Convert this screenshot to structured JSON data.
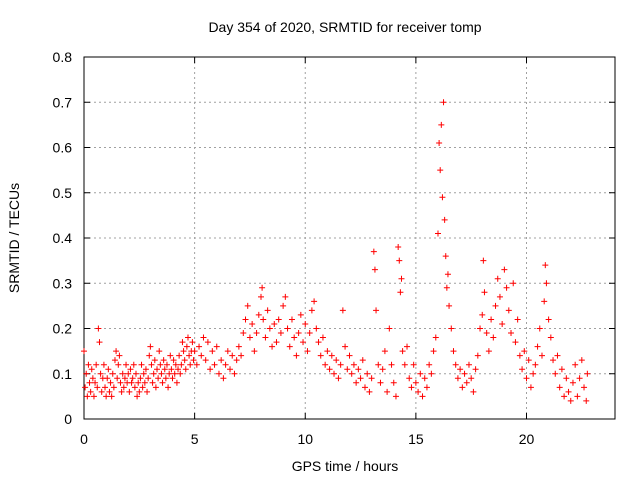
{
  "chart_data": {
    "type": "scatter",
    "title": "Day 354 of 2020, SRMTID for receiver tomp",
    "xlabel": "GPS time / hours",
    "ylabel": "SRMTID / TECUs",
    "xlim": [
      0,
      24
    ],
    "ylim": [
      0,
      0.8
    ],
    "x_ticks": [
      0,
      5,
      10,
      15,
      20
    ],
    "x_tick_labels": [
      "0",
      "5",
      "10",
      "15",
      "20"
    ],
    "y_ticks": [
      0,
      0.1,
      0.2,
      0.3,
      0.4,
      0.5,
      0.6,
      0.7,
      0.8
    ],
    "y_tick_labels": [
      "0",
      "0.1",
      "0.2",
      "0.3",
      "0.4",
      "0.5",
      "0.6",
      "0.7",
      "0.8"
    ],
    "grid": true,
    "marker": "+",
    "color": "#ff0000",
    "series": [
      {
        "name": "SRMTID",
        "points": [
          [
            0.0,
            0.15
          ],
          [
            0.05,
            0.07
          ],
          [
            0.1,
            0.1
          ],
          [
            0.15,
            0.05
          ],
          [
            0.2,
            0.12
          ],
          [
            0.25,
            0.08
          ],
          [
            0.3,
            0.06
          ],
          [
            0.35,
            0.11
          ],
          [
            0.4,
            0.09
          ],
          [
            0.45,
            0.05
          ],
          [
            0.5,
            0.08
          ],
          [
            0.55,
            0.12
          ],
          [
            0.6,
            0.07
          ],
          [
            0.65,
            0.2
          ],
          [
            0.7,
            0.17
          ],
          [
            0.75,
            0.1
          ],
          [
            0.8,
            0.06
          ],
          [
            0.85,
            0.09
          ],
          [
            0.9,
            0.12
          ],
          [
            0.95,
            0.07
          ],
          [
            1.0,
            0.05
          ],
          [
            1.05,
            0.09
          ],
          [
            1.1,
            0.11
          ],
          [
            1.15,
            0.06
          ],
          [
            1.2,
            0.08
          ],
          [
            1.25,
            0.05
          ],
          [
            1.3,
            0.1
          ],
          [
            1.35,
            0.07
          ],
          [
            1.4,
            0.13
          ],
          [
            1.45,
            0.15
          ],
          [
            1.5,
            0.09
          ],
          [
            1.55,
            0.12
          ],
          [
            1.6,
            0.14
          ],
          [
            1.65,
            0.08
          ],
          [
            1.7,
            0.06
          ],
          [
            1.75,
            0.1
          ],
          [
            1.8,
            0.07
          ],
          [
            1.85,
            0.09
          ],
          [
            1.9,
            0.12
          ],
          [
            1.95,
            0.08
          ],
          [
            2.0,
            0.1
          ],
          [
            2.05,
            0.06
          ],
          [
            2.1,
            0.11
          ],
          [
            2.15,
            0.08
          ],
          [
            2.2,
            0.09
          ],
          [
            2.25,
            0.12
          ],
          [
            2.3,
            0.07
          ],
          [
            2.35,
            0.1
          ],
          [
            2.4,
            0.05
          ],
          [
            2.45,
            0.08
          ],
          [
            2.5,
            0.06
          ],
          [
            2.55,
            0.09
          ],
          [
            2.6,
            0.12
          ],
          [
            2.65,
            0.07
          ],
          [
            2.7,
            0.1
          ],
          [
            2.75,
            0.08
          ],
          [
            2.8,
            0.11
          ],
          [
            2.85,
            0.06
          ],
          [
            2.9,
            0.09
          ],
          [
            2.95,
            0.14
          ],
          [
            3.0,
            0.16
          ],
          [
            3.05,
            0.12
          ],
          [
            3.1,
            0.08
          ],
          [
            3.15,
            0.1
          ],
          [
            3.2,
            0.13
          ],
          [
            3.25,
            0.07
          ],
          [
            3.3,
            0.11
          ],
          [
            3.35,
            0.09
          ],
          [
            3.4,
            0.15
          ],
          [
            3.45,
            0.12
          ],
          [
            3.5,
            0.1
          ],
          [
            3.55,
            0.08
          ],
          [
            3.6,
            0.13
          ],
          [
            3.65,
            0.11
          ],
          [
            3.7,
            0.09
          ],
          [
            3.75,
            0.12
          ],
          [
            3.8,
            0.07
          ],
          [
            3.85,
            0.1
          ],
          [
            3.9,
            0.14
          ],
          [
            3.95,
            0.11
          ],
          [
            4.0,
            0.09
          ],
          [
            4.05,
            0.13
          ],
          [
            4.1,
            0.1
          ],
          [
            4.15,
            0.12
          ],
          [
            4.2,
            0.08
          ],
          [
            4.25,
            0.11
          ],
          [
            4.3,
            0.14
          ],
          [
            4.35,
            0.1
          ],
          [
            4.4,
            0.12
          ],
          [
            4.45,
            0.17
          ],
          [
            4.5,
            0.15
          ],
          [
            4.55,
            0.13
          ],
          [
            4.6,
            0.11
          ],
          [
            4.65,
            0.16
          ],
          [
            4.7,
            0.18
          ],
          [
            4.75,
            0.14
          ],
          [
            4.8,
            0.12
          ],
          [
            4.85,
            0.15
          ],
          [
            4.9,
            0.17
          ],
          [
            4.95,
            0.13
          ],
          [
            5.0,
            0.15
          ],
          [
            5.1,
            0.12
          ],
          [
            5.2,
            0.16
          ],
          [
            5.3,
            0.14
          ],
          [
            5.4,
            0.18
          ],
          [
            5.5,
            0.13
          ],
          [
            5.6,
            0.17
          ],
          [
            5.7,
            0.11
          ],
          [
            5.8,
            0.15
          ],
          [
            5.9,
            0.12
          ],
          [
            6.0,
            0.16
          ],
          [
            6.1,
            0.1
          ],
          [
            6.2,
            0.13
          ],
          [
            6.3,
            0.09
          ],
          [
            6.4,
            0.12
          ],
          [
            6.5,
            0.15
          ],
          [
            6.6,
            0.11
          ],
          [
            6.7,
            0.14
          ],
          [
            6.8,
            0.1
          ],
          [
            6.9,
            0.13
          ],
          [
            7.0,
            0.16
          ],
          [
            7.1,
            0.14
          ],
          [
            7.2,
            0.19
          ],
          [
            7.3,
            0.22
          ],
          [
            7.4,
            0.25
          ],
          [
            7.5,
            0.18
          ],
          [
            7.6,
            0.21
          ],
          [
            7.7,
            0.15
          ],
          [
            7.8,
            0.19
          ],
          [
            7.9,
            0.23
          ],
          [
            8.0,
            0.27
          ],
          [
            8.05,
            0.29
          ],
          [
            8.1,
            0.22
          ],
          [
            8.2,
            0.18
          ],
          [
            8.3,
            0.24
          ],
          [
            8.4,
            0.2
          ],
          [
            8.5,
            0.16
          ],
          [
            8.6,
            0.21
          ],
          [
            8.7,
            0.17
          ],
          [
            8.8,
            0.22
          ],
          [
            8.9,
            0.19
          ],
          [
            9.0,
            0.25
          ],
          [
            9.1,
            0.27
          ],
          [
            9.2,
            0.2
          ],
          [
            9.3,
            0.16
          ],
          [
            9.4,
            0.22
          ],
          [
            9.5,
            0.18
          ],
          [
            9.6,
            0.14
          ],
          [
            9.7,
            0.19
          ],
          [
            9.8,
            0.23
          ],
          [
            9.9,
            0.17
          ],
          [
            10.0,
            0.21
          ],
          [
            10.1,
            0.15
          ],
          [
            10.2,
            0.19
          ],
          [
            10.3,
            0.24
          ],
          [
            10.4,
            0.26
          ],
          [
            10.5,
            0.2
          ],
          [
            10.6,
            0.17
          ],
          [
            10.7,
            0.14
          ],
          [
            10.8,
            0.18
          ],
          [
            10.9,
            0.12
          ],
          [
            11.0,
            0.15
          ],
          [
            11.1,
            0.11
          ],
          [
            11.2,
            0.14
          ],
          [
            11.3,
            0.1
          ],
          [
            11.4,
            0.13
          ],
          [
            11.5,
            0.09
          ],
          [
            11.6,
            0.12
          ],
          [
            11.7,
            0.24
          ],
          [
            11.8,
            0.16
          ],
          [
            11.9,
            0.11
          ],
          [
            12.0,
            0.14
          ],
          [
            12.1,
            0.1
          ],
          [
            12.2,
            0.12
          ],
          [
            12.3,
            0.08
          ],
          [
            12.4,
            0.11
          ],
          [
            12.5,
            0.09
          ],
          [
            12.6,
            0.13
          ],
          [
            12.7,
            0.07
          ],
          [
            12.8,
            0.1
          ],
          [
            12.9,
            0.06
          ],
          [
            13.0,
            0.09
          ],
          [
            13.1,
            0.37
          ],
          [
            13.15,
            0.33
          ],
          [
            13.2,
            0.24
          ],
          [
            13.3,
            0.12
          ],
          [
            13.4,
            0.08
          ],
          [
            13.5,
            0.11
          ],
          [
            13.6,
            0.15
          ],
          [
            13.7,
            0.06
          ],
          [
            13.8,
            0.2
          ],
          [
            13.9,
            0.12
          ],
          [
            14.0,
            0.08
          ],
          [
            14.1,
            0.05
          ],
          [
            14.2,
            0.38
          ],
          [
            14.25,
            0.35
          ],
          [
            14.3,
            0.28
          ],
          [
            14.35,
            0.31
          ],
          [
            14.4,
            0.15
          ],
          [
            14.5,
            0.12
          ],
          [
            14.6,
            0.16
          ],
          [
            14.7,
            0.09
          ],
          [
            14.8,
            0.07
          ],
          [
            14.9,
            0.12
          ],
          [
            15.0,
            0.08
          ],
          [
            15.1,
            0.06
          ],
          [
            15.2,
            0.1
          ],
          [
            15.3,
            0.05
          ],
          [
            15.4,
            0.09
          ],
          [
            15.5,
            0.07
          ],
          [
            15.6,
            0.12
          ],
          [
            15.7,
            0.1
          ],
          [
            15.8,
            0.15
          ],
          [
            15.9,
            0.18
          ],
          [
            16.0,
            0.41
          ],
          [
            16.05,
            0.61
          ],
          [
            16.1,
            0.55
          ],
          [
            16.15,
            0.65
          ],
          [
            16.2,
            0.49
          ],
          [
            16.25,
            0.7
          ],
          [
            16.3,
            0.44
          ],
          [
            16.35,
            0.36
          ],
          [
            16.4,
            0.29
          ],
          [
            16.45,
            0.32
          ],
          [
            16.5,
            0.25
          ],
          [
            16.6,
            0.2
          ],
          [
            16.7,
            0.15
          ],
          [
            16.8,
            0.12
          ],
          [
            16.9,
            0.09
          ],
          [
            17.0,
            0.11
          ],
          [
            17.1,
            0.07
          ],
          [
            17.2,
            0.1
          ],
          [
            17.3,
            0.08
          ],
          [
            17.4,
            0.12
          ],
          [
            17.5,
            0.09
          ],
          [
            17.6,
            0.06
          ],
          [
            17.7,
            0.11
          ],
          [
            17.8,
            0.14
          ],
          [
            17.9,
            0.2
          ],
          [
            18.0,
            0.23
          ],
          [
            18.05,
            0.35
          ],
          [
            18.1,
            0.28
          ],
          [
            18.2,
            0.19
          ],
          [
            18.3,
            0.15
          ],
          [
            18.4,
            0.22
          ],
          [
            18.5,
            0.18
          ],
          [
            18.6,
            0.25
          ],
          [
            18.7,
            0.31
          ],
          [
            18.8,
            0.27
          ],
          [
            18.9,
            0.21
          ],
          [
            19.0,
            0.33
          ],
          [
            19.1,
            0.29
          ],
          [
            19.2,
            0.24
          ],
          [
            19.3,
            0.19
          ],
          [
            19.4,
            0.3
          ],
          [
            19.5,
            0.17
          ],
          [
            19.6,
            0.22
          ],
          [
            19.7,
            0.14
          ],
          [
            19.8,
            0.11
          ],
          [
            19.9,
            0.15
          ],
          [
            20.0,
            0.09
          ],
          [
            20.1,
            0.13
          ],
          [
            20.2,
            0.07
          ],
          [
            20.3,
            0.1
          ],
          [
            20.4,
            0.12
          ],
          [
            20.5,
            0.16
          ],
          [
            20.6,
            0.2
          ],
          [
            20.7,
            0.14
          ],
          [
            20.8,
            0.26
          ],
          [
            20.85,
            0.34
          ],
          [
            20.9,
            0.3
          ],
          [
            21.0,
            0.22
          ],
          [
            21.1,
            0.18
          ],
          [
            21.2,
            0.13
          ],
          [
            21.3,
            0.1
          ],
          [
            21.4,
            0.14
          ],
          [
            21.5,
            0.07
          ],
          [
            21.6,
            0.11
          ],
          [
            21.7,
            0.05
          ],
          [
            21.8,
            0.09
          ],
          [
            21.9,
            0.06
          ],
          [
            22.0,
            0.04
          ],
          [
            22.1,
            0.08
          ],
          [
            22.2,
            0.12
          ],
          [
            22.3,
            0.05
          ],
          [
            22.4,
            0.09
          ],
          [
            22.5,
            0.13
          ],
          [
            22.6,
            0.07
          ],
          [
            22.7,
            0.04
          ],
          [
            22.75,
            0.1
          ]
        ]
      }
    ]
  }
}
